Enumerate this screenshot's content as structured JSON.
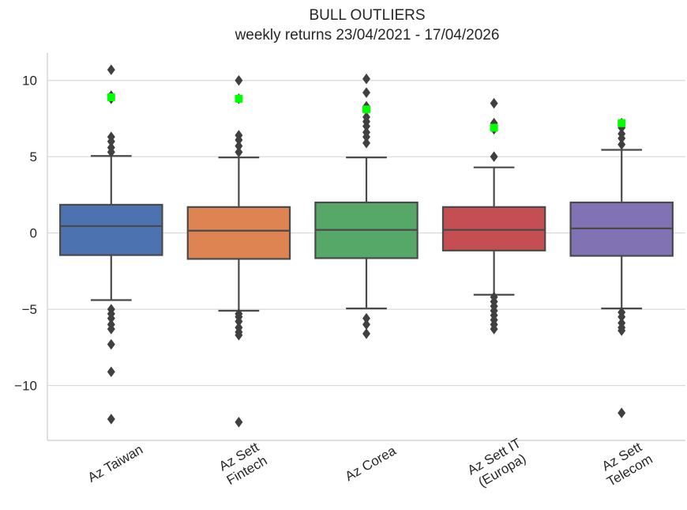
{
  "chart_data": {
    "type": "box",
    "title": "BULL OUTLIERS",
    "subtitle": "weekly returns 23/04/2021 - 17/04/2026",
    "xlabel": "",
    "ylabel": "",
    "ylim": [
      -13.6,
      11.8
    ],
    "yticks": [
      10,
      5,
      0,
      -5,
      -10
    ],
    "grid": "horizontal",
    "categories": [
      [
        "Az Taiwan"
      ],
      [
        "Az Sett",
        "Fintech"
      ],
      [
        "Az Corea"
      ],
      [
        "Az Sett IT",
        "(Europa)"
      ],
      [
        "Az Sett",
        "Telecom"
      ]
    ],
    "boxes": [
      {
        "q1": -1.45,
        "median": 0.45,
        "q3": 1.85,
        "whisker_low": -4.4,
        "whisker_high": 5.05,
        "color": "#4c72b0",
        "outliers": [
          10.7,
          8.8,
          9.0,
          6.3,
          6.0,
          5.6,
          5.3,
          -5.0,
          -5.3,
          -5.6,
          -6.0,
          -6.3,
          -7.3,
          -9.1,
          -12.2
        ]
      },
      {
        "q1": -1.7,
        "median": 0.15,
        "q3": 1.7,
        "whisker_low": -5.1,
        "whisker_high": 4.95,
        "color": "#dd8452",
        "outliers": [
          10.0,
          8.8,
          6.4,
          6.1,
          5.7,
          5.3,
          -5.3,
          -5.5,
          -5.8,
          -6.2,
          -6.5,
          -6.7,
          -12.4
        ]
      },
      {
        "q1": -1.65,
        "median": 0.2,
        "q3": 2.0,
        "whisker_low": -4.95,
        "whisker_high": 4.95,
        "color": "#55a868",
        "outliers": [
          10.1,
          9.2,
          8.3,
          7.6,
          7.3,
          7.0,
          6.6,
          6.3,
          5.9,
          -5.6,
          -6.0,
          -6.6
        ]
      },
      {
        "q1": -1.15,
        "median": 0.2,
        "q3": 1.7,
        "whisker_low": -4.05,
        "whisker_high": 4.3,
        "color": "#c44e52",
        "outliers": [
          8.5,
          7.2,
          6.8,
          5.0,
          -4.2,
          -4.5,
          -4.8,
          -5.1,
          -5.4,
          -5.7,
          -6.0,
          -6.3
        ]
      },
      {
        "q1": -1.5,
        "median": 0.3,
        "q3": 2.0,
        "whisker_low": -4.95,
        "whisker_high": 5.45,
        "color": "#8172b3",
        "outliers": [
          7.2,
          6.9,
          6.5,
          6.2,
          5.8,
          -5.2,
          -5.5,
          -5.9,
          -6.2,
          -6.4,
          -11.8
        ]
      }
    ],
    "highlight_color": "#00ff00",
    "highlights": [
      8.9,
      8.8,
      8.1,
      6.9,
      7.2
    ]
  }
}
